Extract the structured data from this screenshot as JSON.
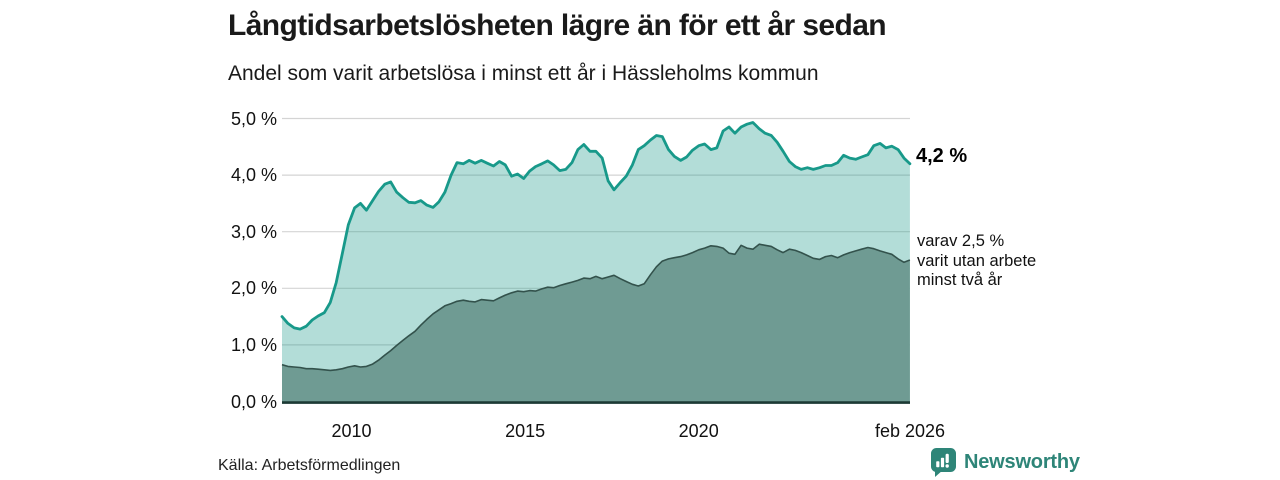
{
  "header": {
    "title": "Långtidsarbetslösheten lägre än för ett år sedan",
    "subtitle": "Andel som varit arbetslösa i minst ett år i Hässleholms kommun"
  },
  "chart_data": {
    "type": "area",
    "title": "Långtidsarbetslösheten lägre än för ett år sedan",
    "subtitle": "Andel som varit arbetslösa i minst ett år i Hässleholms kommun",
    "xlabel": "",
    "ylabel": "",
    "grid": true,
    "x_axis": {
      "range": [
        2008.0,
        2026.083
      ],
      "ticks": [
        "2010",
        "2015",
        "2020",
        "feb 2026"
      ],
      "tick_years": [
        2010,
        2015,
        2020,
        2026.083
      ]
    },
    "y_axis": {
      "range": [
        0,
        5
      ],
      "unit": "%",
      "ticks": [
        "0,0 %",
        "1,0 %",
        "2,0 %",
        "3,0 %",
        "4,0 %",
        "5,0 %"
      ],
      "tick_values": [
        0,
        1,
        2,
        3,
        4,
        5
      ]
    },
    "x": [
      2008,
      2008.17,
      2008.35,
      2008.52,
      2008.7,
      2008.87,
      2009.04,
      2009.22,
      2009.39,
      2009.56,
      2009.74,
      2009.91,
      2010.09,
      2010.26,
      2010.43,
      2010.61,
      2010.78,
      2010.96,
      2011.13,
      2011.3,
      2011.48,
      2011.65,
      2011.83,
      2012,
      2012.17,
      2012.35,
      2012.52,
      2012.69,
      2012.87,
      2013.04,
      2013.22,
      2013.39,
      2013.56,
      2013.74,
      2013.91,
      2014.09,
      2014.26,
      2014.43,
      2014.61,
      2014.78,
      2014.96,
      2015.13,
      2015.3,
      2015.48,
      2015.65,
      2015.82,
      2016,
      2016.17,
      2016.35,
      2016.52,
      2016.69,
      2016.87,
      2017.04,
      2017.22,
      2017.39,
      2017.56,
      2017.74,
      2017.91,
      2018.09,
      2018.26,
      2018.43,
      2018.61,
      2018.78,
      2018.95,
      2019.13,
      2019.3,
      2019.48,
      2019.65,
      2019.82,
      2020,
      2020.17,
      2020.35,
      2020.52,
      2020.7,
      2020.87,
      2021.04,
      2021.22,
      2021.39,
      2021.56,
      2021.74,
      2021.91,
      2022.09,
      2022.26,
      2022.43,
      2022.61,
      2022.78,
      2022.95,
      2023.13,
      2023.3,
      2023.48,
      2023.65,
      2023.82,
      2024,
      2024.17,
      2024.35,
      2024.52,
      2024.69,
      2024.87,
      2025.04,
      2025.22,
      2025.39,
      2025.56,
      2025.74,
      2025.91,
      2026.08
    ],
    "series": [
      {
        "name": "Andel som varit arbetslösa i minst ett år",
        "color": "#18998a",
        "fill": "rgba(24,153,138,0.33)",
        "stroke_width": 2.8,
        "end_value": "4,2 %",
        "values": [
          1.5,
          1.38,
          1.3,
          1.28,
          1.33,
          1.44,
          1.51,
          1.57,
          1.75,
          2.1,
          2.62,
          3.12,
          3.42,
          3.5,
          3.38,
          3.55,
          3.71,
          3.84,
          3.88,
          3.7,
          3.6,
          3.52,
          3.51,
          3.55,
          3.47,
          3.43,
          3.53,
          3.7,
          4.0,
          4.22,
          4.2,
          4.26,
          4.21,
          4.26,
          4.21,
          4.16,
          4.24,
          4.18,
          3.98,
          4.02,
          3.94,
          4.07,
          4.15,
          4.2,
          4.25,
          4.18,
          4.08,
          4.1,
          4.22,
          4.45,
          4.54,
          4.42,
          4.42,
          4.3,
          3.9,
          3.74,
          3.87,
          3.98,
          4.18,
          4.45,
          4.52,
          4.62,
          4.7,
          4.68,
          4.45,
          4.33,
          4.26,
          4.32,
          4.44,
          4.52,
          4.55,
          4.45,
          4.48,
          4.78,
          4.85,
          4.74,
          4.85,
          4.9,
          4.93,
          4.82,
          4.74,
          4.7,
          4.58,
          4.42,
          4.24,
          4.15,
          4.1,
          4.13,
          4.1,
          4.13,
          4.17,
          4.17,
          4.22,
          4.35,
          4.3,
          4.28,
          4.32,
          4.36,
          4.52,
          4.56,
          4.48,
          4.51,
          4.45,
          4.3,
          4.2
        ]
      },
      {
        "name": "varav utan arbete minst två år",
        "color": "#33524c",
        "fill": "#6f9b93",
        "stroke_width": 1.6,
        "end_value": "2,5 %",
        "values": [
          0.65,
          0.62,
          0.61,
          0.6,
          0.58,
          0.58,
          0.57,
          0.56,
          0.55,
          0.56,
          0.58,
          0.61,
          0.63,
          0.61,
          0.62,
          0.66,
          0.73,
          0.82,
          0.9,
          0.99,
          1.08,
          1.16,
          1.24,
          1.35,
          1.45,
          1.55,
          1.62,
          1.69,
          1.73,
          1.77,
          1.79,
          1.77,
          1.76,
          1.8,
          1.79,
          1.78,
          1.83,
          1.88,
          1.92,
          1.95,
          1.94,
          1.96,
          1.95,
          1.99,
          2.02,
          2.01,
          2.05,
          2.08,
          2.11,
          2.14,
          2.18,
          2.17,
          2.21,
          2.17,
          2.2,
          2.23,
          2.17,
          2.12,
          2.07,
          2.04,
          2.08,
          2.24,
          2.38,
          2.48,
          2.52,
          2.54,
          2.56,
          2.59,
          2.63,
          2.68,
          2.71,
          2.75,
          2.74,
          2.71,
          2.62,
          2.6,
          2.76,
          2.71,
          2.69,
          2.78,
          2.76,
          2.74,
          2.68,
          2.63,
          2.69,
          2.67,
          2.63,
          2.58,
          2.53,
          2.51,
          2.56,
          2.58,
          2.54,
          2.59,
          2.63,
          2.66,
          2.69,
          2.72,
          2.7,
          2.66,
          2.63,
          2.6,
          2.52,
          2.46,
          2.5
        ]
      }
    ],
    "gridline_color": "#d4d4d4",
    "baseline_color": "#1c3a34"
  },
  "annotations": {
    "end_value_top": "4,2 %",
    "end_note_lines": [
      "varav 2,5 %",
      "varit utan arbete",
      "minst två år"
    ]
  },
  "footer": {
    "source": "Källa: Arbetsförmedlingen",
    "brand": "Newsworthy",
    "brand_color": "#2e8578"
  }
}
